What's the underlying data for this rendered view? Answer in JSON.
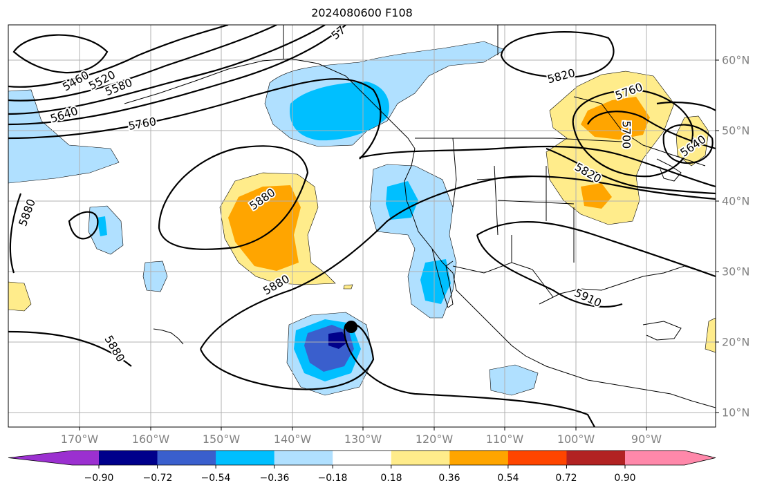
{
  "title": "2024080600 F108",
  "lon_labels": [
    "170°W",
    "160°W",
    "150°W",
    "140°W",
    "130°W",
    "120°W",
    "110°W",
    "100°W",
    "90°W"
  ],
  "lat_labels": [
    "60°N",
    "50°N",
    "40°N",
    "30°N",
    "20°N",
    "10°N"
  ],
  "colorbar": {
    "tick_labels": [
      "−0.90",
      "−0.72",
      "−0.54",
      "−0.36",
      "−0.18",
      "0.18",
      "0.36",
      "0.54",
      "0.72",
      "0.90"
    ],
    "colors": [
      "#9b30d0",
      "#00008b",
      "#3a5fcd",
      "#00bfff",
      "#b0e0ff",
      "#ffffff",
      "#ffec8b",
      "#ffa500",
      "#ff4500",
      "#b22222",
      "#ff88aa"
    ]
  },
  "contour_labels": [
    {
      "text": "5460"
    },
    {
      "text": "5520"
    },
    {
      "text": "5580"
    },
    {
      "text": "5640"
    },
    {
      "text": "5760"
    },
    {
      "text": "5880"
    },
    {
      "text": "5880"
    },
    {
      "text": "5880"
    },
    {
      "text": "5880"
    },
    {
      "text": "5820"
    },
    {
      "text": "5760"
    },
    {
      "text": "5700"
    },
    {
      "text": "5640"
    },
    {
      "text": "5820"
    },
    {
      "text": "5910"
    },
    {
      "text": "57"
    }
  ]
}
